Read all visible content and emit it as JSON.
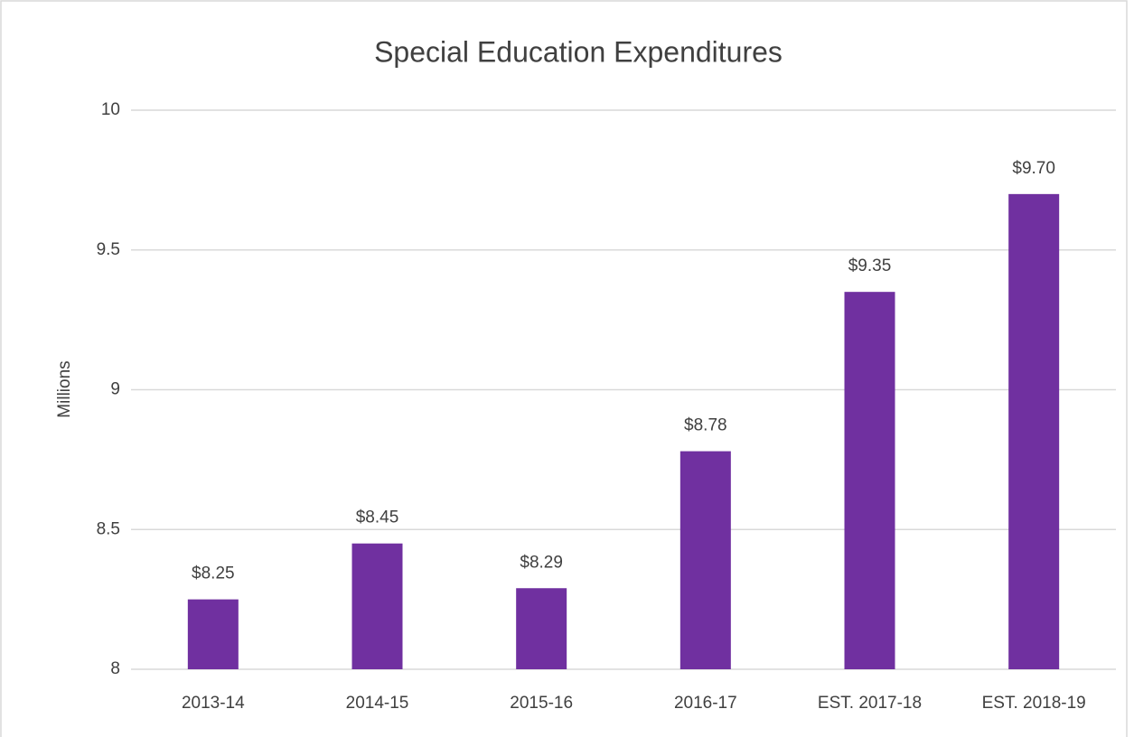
{
  "chart_data": {
    "type": "bar",
    "title": "Special Education Expenditures",
    "y_label": "Millions",
    "categories": [
      "2013-14",
      "2014-15",
      "2015-16",
      "2016-17",
      "EST. 2017-18",
      "EST. 2018-19"
    ],
    "values": [
      8.25,
      8.45,
      8.29,
      8.78,
      9.35,
      9.7
    ],
    "value_labels": [
      "$8.25",
      "$8.45",
      "$8.29",
      "$8.78",
      "$9.35",
      "$9.70"
    ],
    "color": "#7030a0",
    "ylim": [
      8,
      10
    ],
    "yticks": [
      8,
      8.5,
      9,
      9.5,
      10
    ],
    "grid": true
  }
}
